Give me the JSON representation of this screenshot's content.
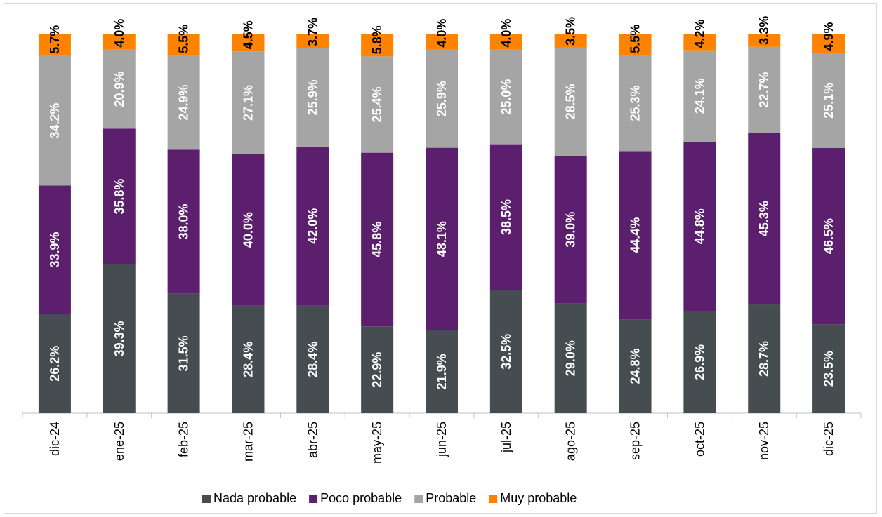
{
  "chart_data": {
    "type": "bar",
    "stacked": true,
    "orientation": "vertical",
    "categories": [
      "dic-24",
      "ene-25",
      "feb-25",
      "mar-25",
      "abr-25",
      "may-25",
      "jun-25",
      "jul-25",
      "ago-25",
      "sep-25",
      "oct-25",
      "nov-25",
      "dic-25"
    ],
    "series": [
      {
        "name": "Nada probable",
        "color": "#464D51",
        "label_color": "#FFFFFF",
        "values": [
          26.2,
          39.3,
          31.5,
          28.4,
          28.4,
          22.9,
          21.9,
          32.5,
          29.0,
          24.8,
          26.9,
          28.7,
          23.5
        ],
        "labels": [
          "26.2%",
          "39.3%",
          "31.5%",
          "28.4%",
          "28.4%",
          "22.9%",
          "21.9%",
          "32.5%",
          "29.0%",
          "24.8%",
          "26.9%",
          "28.7%",
          "23.5%"
        ]
      },
      {
        "name": "Poco probable",
        "color": "#5B1F6E",
        "label_color": "#FFFFFF",
        "values": [
          33.9,
          35.8,
          38.0,
          40.0,
          42.0,
          45.8,
          48.1,
          38.5,
          39.0,
          44.4,
          44.8,
          45.3,
          46.5
        ],
        "labels": [
          "33.9%",
          "35.8%",
          "38.0%",
          "40.0%",
          "42.0%",
          "45.8%",
          "48.1%",
          "38.5%",
          "39.0%",
          "44.4%",
          "44.8%",
          "45.3%",
          "46.5%"
        ]
      },
      {
        "name": "Probable",
        "color": "#A5A5A5",
        "label_color": "#FFFFFF",
        "values": [
          34.2,
          20.9,
          24.9,
          27.1,
          25.9,
          25.4,
          25.9,
          25.0,
          28.5,
          25.3,
          24.1,
          22.7,
          25.1
        ],
        "labels": [
          "34.2%",
          "20.9%",
          "24.9%",
          "27.1%",
          "25.9%",
          "25.4%",
          "25.9%",
          "25.0%",
          "28.5%",
          "25.3%",
          "24.1%",
          "22.7%",
          "25.1%"
        ]
      },
      {
        "name": "Muy probable",
        "color": "#FF8200",
        "label_color": "#000000",
        "values": [
          5.7,
          4.0,
          5.5,
          4.5,
          3.7,
          5.8,
          4.0,
          4.0,
          3.5,
          5.5,
          4.2,
          3.3,
          4.9
        ],
        "labels": [
          "5.7%",
          "4.0%",
          "5.5%",
          "4.5%",
          "3.7%",
          "5.8%",
          "4.0%",
          "4.0%",
          "3.5%",
          "5.5%",
          "4.2%",
          "3.3%",
          "4.9%"
        ]
      }
    ],
    "ylim": [
      0,
      100
    ],
    "grid": false,
    "legend_position": "bottom",
    "title": "",
    "xlabel": "",
    "ylabel": ""
  }
}
